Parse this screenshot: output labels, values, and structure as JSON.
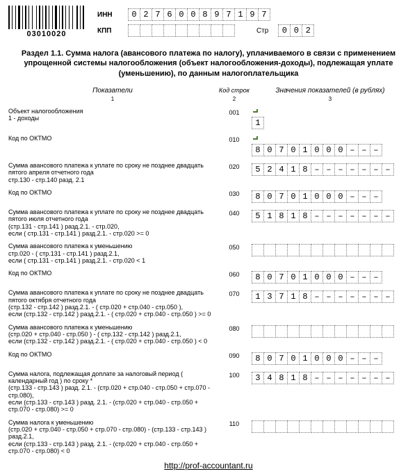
{
  "barcode_number": "03010020",
  "header": {
    "inn_label": "ИНН",
    "inn": [
      "0",
      "2",
      "7",
      "6",
      "0",
      "0",
      "8",
      "9",
      "7",
      "1",
      "9",
      "7"
    ],
    "kpp_label": "КПП",
    "kpp": [
      "",
      "",
      "",
      "",
      "",
      "",
      "",
      "",
      ""
    ],
    "str_label": "Стр",
    "str": [
      "0",
      "0",
      "2"
    ]
  },
  "title": "Раздел 1.1. Сумма налога (авансового платежа по налогу), уплачиваемого в связи с применением упрощенной системы налогообложения (объект налогообложения-доходы), подлежащая уплате (уменьшению), по данным налогоплательщика",
  "columns": {
    "c1": "Показатели",
    "c2": "Код строк",
    "c3": "Значения показателей (в рублях)",
    "s1": "1",
    "s2": "2",
    "s3": "3"
  },
  "rows": [
    {
      "label": "Объект налогообложения\n1 - доходы",
      "code": "001",
      "tick": true,
      "cells": [
        "1"
      ]
    },
    {
      "label": "Код по ОКТМО",
      "code": "010",
      "tick": true,
      "cells": [
        "8",
        "0",
        "7",
        "0",
        "1",
        "0",
        "0",
        "0",
        "–",
        "–",
        "–"
      ]
    },
    {
      "label": "Сумма авансового платежа к уплате по сроку не позднее двадцать пятого апреля отчетного года\nстр.130 - стр.140 разд. 2.1",
      "code": "020",
      "tick": false,
      "cells": [
        "5",
        "2",
        "4",
        "1",
        "8",
        "–",
        "–",
        "–",
        "–",
        "–",
        "–",
        "–"
      ]
    },
    {
      "label": "Код по ОКТМО",
      "code": "030",
      "tick": false,
      "cells": [
        "8",
        "0",
        "7",
        "0",
        "1",
        "0",
        "0",
        "0",
        "–",
        "–",
        "–"
      ]
    },
    {
      "label": "Сумма авансового платежа к уплате по сроку не позднее двадцать пятого июля отчетного года\n(стр.131 - стр.141 ) разд.2.1.  - стр.020,\nесли ( стр.131 - стр.141 ) разд.2.1.  - стр.020  >= 0",
      "code": "040",
      "tick": false,
      "cells": [
        "5",
        "1",
        "8",
        "1",
        "8",
        "–",
        "–",
        "–",
        "–",
        "–",
        "–",
        "–"
      ]
    },
    {
      "label": "Сумма авансового платежа к уменьшению\nстр.020 - ( стр.131 - стр.141 ) разд.2.1,\nесли ( стр.131 - стр.141 ) разд.2.1.  - стр.020  < 1",
      "code": "050",
      "tick": false,
      "cells": [
        "",
        "",
        "",
        "",
        "",
        "",
        "",
        "",
        "",
        "",
        "",
        ""
      ]
    },
    {
      "label": "Код по ОКТМО",
      "code": "060",
      "tick": false,
      "cells": [
        "8",
        "0",
        "7",
        "0",
        "1",
        "0",
        "0",
        "0",
        "–",
        "–",
        "–"
      ]
    },
    {
      "label": "Сумма авансового платежа к уплате по сроку не позднее двадцать пятого октября отчетного года\n(стр.132 - стр.142 ) разд.2.1.  - ( стр.020 + стр.040 - стр.050 ),\nесли (стр.132 - стр.142 ) разд.2.1.  - ( стр.020 + стр.040 - стр.050 )  >= 0",
      "code": "070",
      "tick": false,
      "cells": [
        "1",
        "3",
        "7",
        "1",
        "8",
        "–",
        "–",
        "–",
        "–",
        "–",
        "–",
        "–"
      ]
    },
    {
      "label": "Сумма авансового платежа к уменьшению\n(стр.020 + стр.040 - стр.050 ) - ( стр.132 - стр.142 ) разд.2.1,\nесли (стр.132 - стр.142 ) разд.2.1.  - ( стр.020 + стр.040 - стр.050 )  < 0",
      "code": "080",
      "tick": false,
      "cells": [
        "",
        "",
        "",
        "",
        "",
        "",
        "",
        "",
        "",
        "",
        "",
        ""
      ]
    },
    {
      "label": "Код по ОКТМО",
      "code": "090",
      "tick": false,
      "cells": [
        "8",
        "0",
        "7",
        "0",
        "1",
        "0",
        "0",
        "0",
        "–",
        "–",
        "–"
      ]
    },
    {
      "label": "Сумма налога, подлежащая доплате за налоговый период ( календарный год ) по сроку *\n(стр.133 - стр.143 ) разд. 2.1. - (стр.020 + стр.040 - стр.050 + стр.070 - стр.080),\nесли (стр.133 - стр.143 ) разд. 2.1. - (стр.020 + стр.040 - стр.050 + стр.070 - стр.080)  >= 0",
      "code": "100",
      "tick": false,
      "cells": [
        "3",
        "4",
        "8",
        "1",
        "8",
        "–",
        "–",
        "–",
        "–",
        "–",
        "–",
        "–"
      ]
    },
    {
      "label": "Сумма налога к уменьшению\n(стр.020 + стр.040 - стр.050 + стр.070 - стр.080) - (стр.133 - стр.143 ) разд.2.1,\nесли (стр.133 - стр.143 ) разд. 2.1. - (стр.020 + стр.040 - стр.050 + стр.070 - стр.080)  < 0",
      "code": "110",
      "tick": false,
      "cells": [
        "",
        "",
        "",
        "",
        "",
        "",
        "",
        "",
        "",
        "",
        "",
        ""
      ]
    }
  ],
  "link": "http://prof-accountant.ru"
}
